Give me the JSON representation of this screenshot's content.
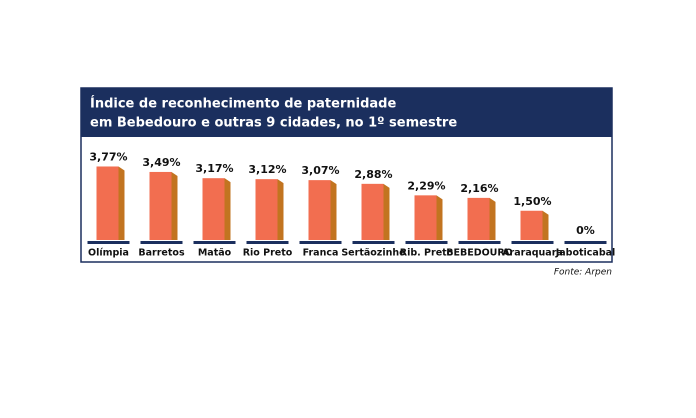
{
  "chart_data": {
    "type": "bar",
    "title": [
      "Índice de reconhecimento de paternidade",
      "em Bebedouro e outras 9 cidades, no 1º semestre"
    ],
    "categories": [
      "Olímpia",
      "Barretos",
      "Matão",
      "Rio Preto",
      "Franca",
      "Sertãozinho",
      "Rib. Preto",
      "BEBEDOURO",
      "Araraquara",
      "Jaboticabal"
    ],
    "values": [
      3.77,
      3.49,
      3.17,
      3.12,
      3.07,
      2.88,
      2.29,
      2.16,
      1.5,
      0
    ],
    "value_labels": [
      "3,77%",
      "3,49%",
      "3,17%",
      "3,12%",
      "3,07%",
      "2,88%",
      "2,29%",
      "2,16%",
      "1,50%",
      "0%"
    ],
    "color": "#f26e50",
    "source": "Fonte: Arpen"
  }
}
